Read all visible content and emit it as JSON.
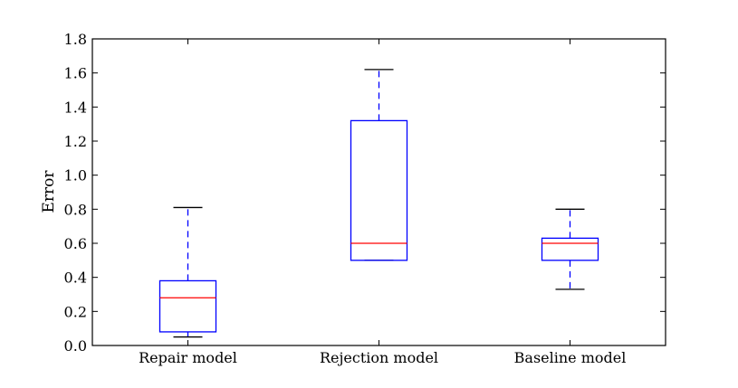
{
  "chart_data": {
    "type": "box",
    "title": "",
    "xlabel": "",
    "ylabel": "Error",
    "ylim": [
      0.0,
      1.8
    ],
    "yticks": [
      "0.0",
      "0.2",
      "0.4",
      "0.6",
      "0.8",
      "1.0",
      "1.2",
      "1.4",
      "1.6",
      "1.8"
    ],
    "grid": false,
    "categories": [
      "Repair model",
      "Rejection model",
      "Baseline model"
    ],
    "boxes": [
      {
        "category": "Repair model",
        "whisker_low": 0.05,
        "q1": 0.08,
        "median": 0.28,
        "q3": 0.38,
        "whisker_high": 0.81
      },
      {
        "category": "Rejection model",
        "whisker_low": 0.5,
        "q1": 0.5,
        "median": 0.6,
        "q3": 1.32,
        "whisker_high": 1.62
      },
      {
        "category": "Baseline model",
        "whisker_low": 0.33,
        "q1": 0.5,
        "median": 0.6,
        "q3": 0.63,
        "whisker_high": 0.8
      }
    ],
    "colors": {
      "box": "#0000ff",
      "median": "#ff0000",
      "whisker": "#0000ff",
      "cap": "#000000",
      "axis": "#000000"
    }
  }
}
